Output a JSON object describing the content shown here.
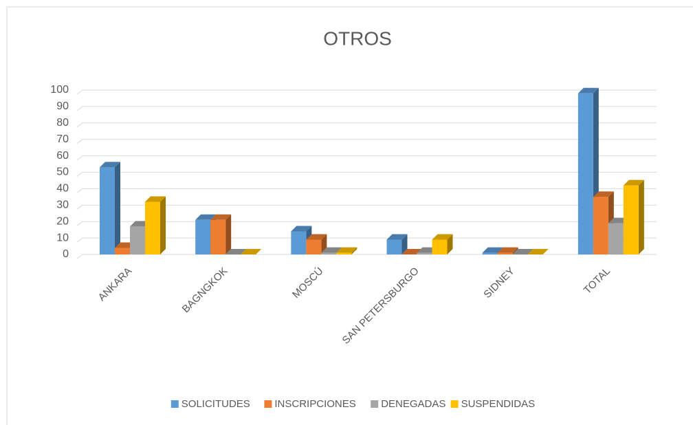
{
  "chart_data": {
    "type": "bar3d",
    "title": "OTROS",
    "categories": [
      "ANKARA",
      "BAGNGKOK",
      "MOSCÚ",
      "SAN PETERSBURGO",
      "SIDNEY",
      "TOTAL"
    ],
    "series": [
      {
        "name": "SOLICITUDES",
        "color": "#5b9bd5",
        "values": [
          53,
          21,
          14,
          9,
          1,
          98
        ]
      },
      {
        "name": "INSCRIPCIONES",
        "color": "#ed7d31",
        "values": [
          4,
          21,
          9,
          0,
          1,
          35
        ]
      },
      {
        "name": "DENEGADAS",
        "color": "#a5a5a5",
        "values": [
          17,
          0,
          1,
          1,
          0,
          19
        ]
      },
      {
        "name": "SUSPENDIDAS",
        "color": "#ffc000",
        "values": [
          32,
          0,
          1,
          9,
          0,
          42
        ]
      }
    ],
    "ylim": [
      0,
      100
    ],
    "yticks": [
      0,
      10,
      20,
      30,
      40,
      50,
      60,
      70,
      80,
      90,
      100
    ],
    "grid": true,
    "legend": "bottom"
  }
}
